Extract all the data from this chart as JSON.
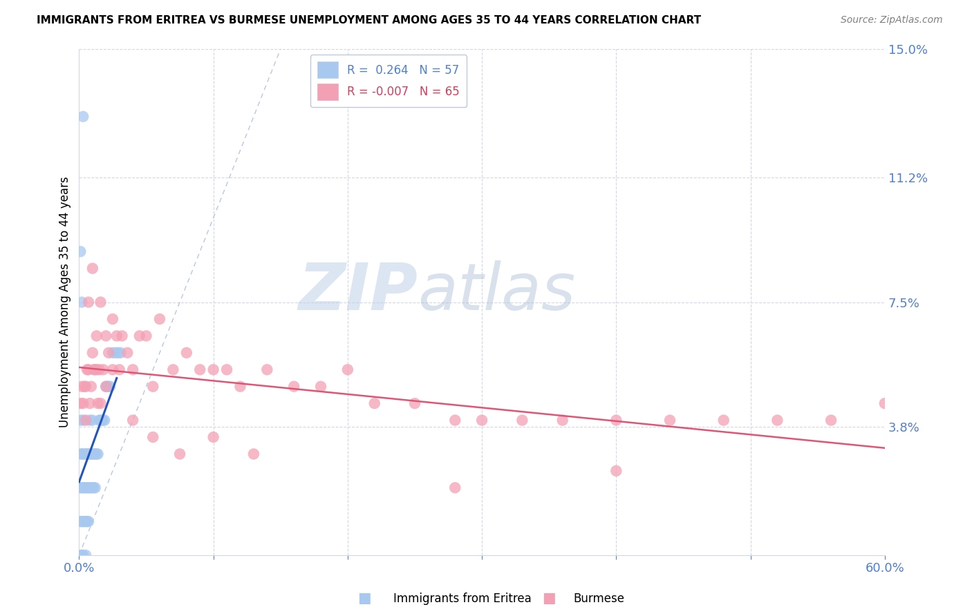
{
  "title": "IMMIGRANTS FROM ERITREA VS BURMESE UNEMPLOYMENT AMONG AGES 35 TO 44 YEARS CORRELATION CHART",
  "source": "Source: ZipAtlas.com",
  "ylabel": "Unemployment Among Ages 35 to 44 years",
  "xlim": [
    0.0,
    0.6
  ],
  "ylim": [
    0.0,
    0.15
  ],
  "xticks": [
    0.0,
    0.1,
    0.2,
    0.3,
    0.4,
    0.5,
    0.6
  ],
  "xticklabels": [
    "0.0%",
    "",
    "",
    "",
    "",
    "",
    "60.0%"
  ],
  "right_yticks": [
    0.0,
    0.038,
    0.075,
    0.112,
    0.15
  ],
  "right_yticklabels": [
    "",
    "3.8%",
    "7.5%",
    "11.2%",
    "15.0%"
  ],
  "legend_r1": "R =  0.264   N = 57",
  "legend_r2": "R = -0.007   N = 65",
  "blue_color": "#a8c8f0",
  "pink_color": "#f4a0b4",
  "blue_line_color": "#2255bb",
  "pink_line_color": "#e05575",
  "diagonal_color": "#b8c8e0",
  "watermark_zip": "ZIP",
  "watermark_atlas": "atlas",
  "blue_x": [
    0.001,
    0.001,
    0.001,
    0.001,
    0.001,
    0.002,
    0.002,
    0.002,
    0.002,
    0.003,
    0.003,
    0.003,
    0.003,
    0.003,
    0.004,
    0.004,
    0.004,
    0.005,
    0.005,
    0.005,
    0.005,
    0.006,
    0.006,
    0.006,
    0.007,
    0.007,
    0.007,
    0.008,
    0.008,
    0.008,
    0.009,
    0.009,
    0.01,
    0.01,
    0.01,
    0.011,
    0.011,
    0.012,
    0.012,
    0.013,
    0.014,
    0.015,
    0.016,
    0.017,
    0.018,
    0.019,
    0.02,
    0.021,
    0.022,
    0.023,
    0.025,
    0.027,
    0.029,
    0.031,
    0.001,
    0.002,
    0.003
  ],
  "blue_y": [
    0.0,
    0.01,
    0.02,
    0.03,
    0.04,
    0.0,
    0.01,
    0.02,
    0.03,
    0.0,
    0.01,
    0.02,
    0.03,
    0.04,
    0.01,
    0.02,
    0.03,
    0.0,
    0.01,
    0.02,
    0.03,
    0.01,
    0.02,
    0.03,
    0.01,
    0.02,
    0.03,
    0.02,
    0.03,
    0.04,
    0.02,
    0.03,
    0.02,
    0.03,
    0.04,
    0.02,
    0.03,
    0.02,
    0.03,
    0.03,
    0.03,
    0.04,
    0.04,
    0.04,
    0.04,
    0.04,
    0.05,
    0.05,
    0.05,
    0.05,
    0.06,
    0.06,
    0.06,
    0.06,
    0.09,
    0.075,
    0.13
  ],
  "pink_x": [
    0.001,
    0.002,
    0.003,
    0.004,
    0.005,
    0.005,
    0.006,
    0.007,
    0.008,
    0.009,
    0.01,
    0.011,
    0.012,
    0.013,
    0.014,
    0.015,
    0.016,
    0.018,
    0.02,
    0.022,
    0.025,
    0.028,
    0.032,
    0.036,
    0.04,
    0.045,
    0.05,
    0.055,
    0.06,
    0.07,
    0.08,
    0.09,
    0.1,
    0.11,
    0.12,
    0.14,
    0.16,
    0.18,
    0.2,
    0.22,
    0.25,
    0.28,
    0.3,
    0.33,
    0.36,
    0.4,
    0.44,
    0.48,
    0.52,
    0.56,
    0.6,
    0.007,
    0.01,
    0.013,
    0.016,
    0.02,
    0.025,
    0.03,
    0.04,
    0.055,
    0.075,
    0.1,
    0.13,
    0.4,
    0.28
  ],
  "pink_y": [
    0.045,
    0.05,
    0.045,
    0.05,
    0.05,
    0.04,
    0.055,
    0.055,
    0.045,
    0.05,
    0.06,
    0.055,
    0.055,
    0.055,
    0.045,
    0.055,
    0.045,
    0.055,
    0.05,
    0.06,
    0.055,
    0.065,
    0.065,
    0.06,
    0.055,
    0.065,
    0.065,
    0.05,
    0.07,
    0.055,
    0.06,
    0.055,
    0.055,
    0.055,
    0.05,
    0.055,
    0.05,
    0.05,
    0.055,
    0.045,
    0.045,
    0.04,
    0.04,
    0.04,
    0.04,
    0.04,
    0.04,
    0.04,
    0.04,
    0.04,
    0.045,
    0.075,
    0.085,
    0.065,
    0.075,
    0.065,
    0.07,
    0.055,
    0.04,
    0.035,
    0.03,
    0.035,
    0.03,
    0.025,
    0.02
  ]
}
